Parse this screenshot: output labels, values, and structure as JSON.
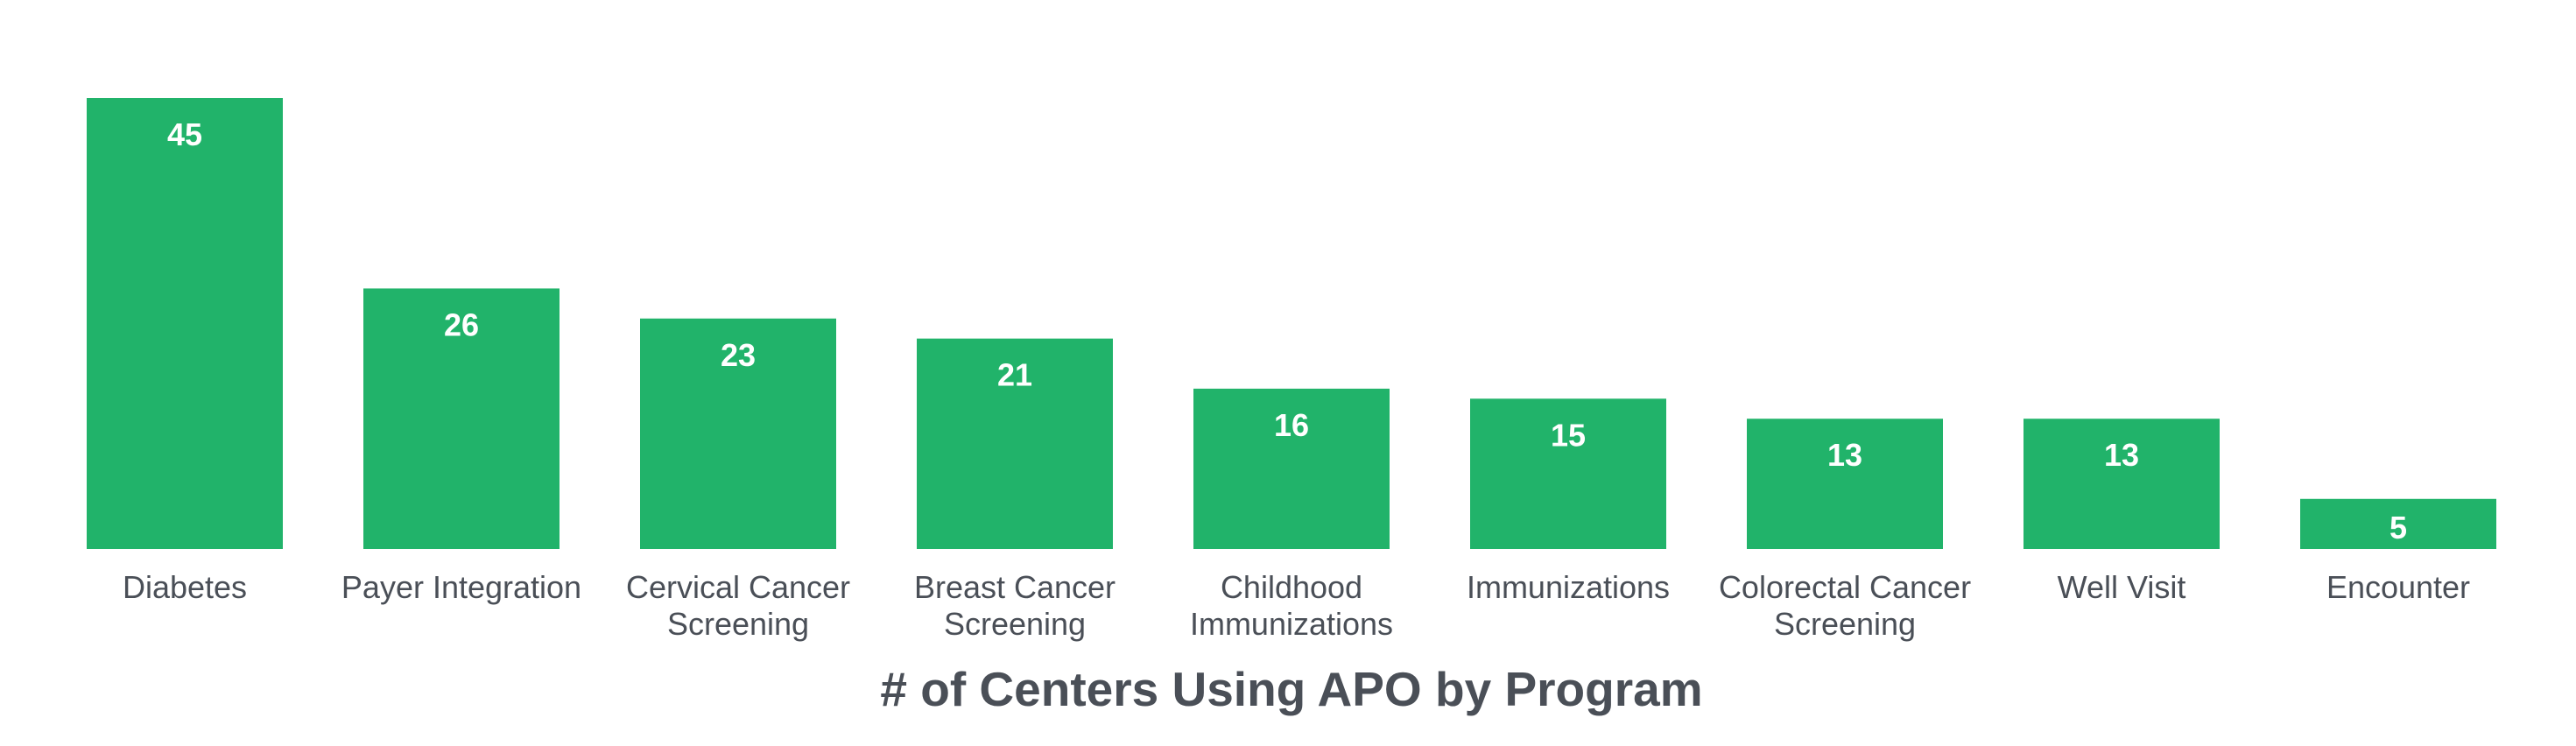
{
  "chart_data": {
    "type": "bar",
    "title": "# of Centers Using APO by Program",
    "xlabel": "",
    "ylabel": "",
    "ylim": [
      0,
      45
    ],
    "grid": false,
    "legend": "none",
    "bar_color": "#21b36a",
    "value_label_color": "#ffffff",
    "text_color": "#4a4f57",
    "categories": [
      [
        "Diabetes"
      ],
      [
        "Payer Integration"
      ],
      [
        "Cervical Cancer",
        "Screening"
      ],
      [
        "Breast Cancer",
        "Screening"
      ],
      [
        "Childhood",
        "Immunizations"
      ],
      [
        "Immunizations"
      ],
      [
        "Colorectal Cancer",
        "Screening"
      ],
      [
        "Well Visit"
      ],
      [
        "Encounter"
      ]
    ],
    "values": [
      45,
      26,
      23,
      21,
      16,
      15,
      13,
      13,
      5
    ]
  }
}
